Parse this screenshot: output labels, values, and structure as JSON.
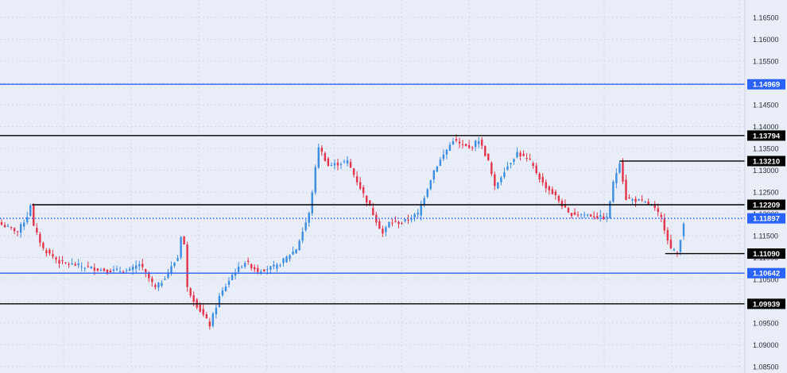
{
  "chart_data": {
    "type": "candlestick",
    "symbol_hint": "EURUSD",
    "y_axis": {
      "ticks": [
        "1.16500",
        "1.16000",
        "1.15500",
        "1.15000",
        "1.14500",
        "1.14000",
        "1.13500",
        "1.13000",
        "1.12500",
        "1.12000",
        "1.11500",
        "1.11000",
        "1.10500",
        "1.10000",
        "1.09500",
        "1.09000",
        "1.08500"
      ],
      "ylim": [
        1.085,
        1.1675
      ],
      "position": "right"
    },
    "grid": true,
    "colors": {
      "background": "#e9edf7",
      "up": "#3b8de0",
      "down": "#e3344b",
      "grid": "#d3d8e6",
      "black_level": "#000000",
      "blue_level": "#2962ff"
    },
    "levels": [
      {
        "value": 1.14969,
        "label": "1.14969",
        "color": "#2962ff",
        "style": "solid",
        "from_frac": 0.0
      },
      {
        "value": 1.13794,
        "label": "1.13794",
        "color": "#000000",
        "style": "solid",
        "from_frac": 0.0
      },
      {
        "value": 1.1321,
        "label": "1.13210",
        "color": "#000000",
        "style": "solid",
        "from_frac": 0.832
      },
      {
        "value": 1.12209,
        "label": "1.12209",
        "color": "#000000",
        "style": "solid",
        "from_frac": 0.043
      },
      {
        "value": 1.11897,
        "label": "1.11897",
        "color": "#2962ff",
        "style": "dotted",
        "from_frac": 0.0
      },
      {
        "value": 1.1109,
        "label": "1.11090",
        "color": "#000000",
        "style": "solid",
        "from_frac": 0.893
      },
      {
        "value": 1.10642,
        "label": "1.10642",
        "color": "#2962ff",
        "style": "solid",
        "from_frac": 0.0
      },
      {
        "value": 1.09939,
        "label": "1.09939",
        "color": "#000000",
        "style": "solid",
        "from_frac": 0.0
      }
    ],
    "close_path": [
      [
        0,
        1.1175
      ],
      [
        5,
        1.116
      ],
      [
        8,
        1.1195
      ],
      [
        9,
        1.1222
      ],
      [
        10,
        1.117
      ],
      [
        13,
        1.112
      ],
      [
        18,
        1.109
      ],
      [
        25,
        1.108
      ],
      [
        33,
        1.107
      ],
      [
        40,
        1.107
      ],
      [
        43,
        1.1085
      ],
      [
        48,
        1.103
      ],
      [
        50,
        1.1045
      ],
      [
        55,
        1.11
      ],
      [
        56,
        1.115
      ],
      [
        57,
        1.113
      ],
      [
        58,
        1.103
      ],
      [
        61,
        1.099
      ],
      [
        65,
        1.0945
      ],
      [
        68,
        1.101
      ],
      [
        72,
        1.106
      ],
      [
        76,
        1.109
      ],
      [
        80,
        1.107
      ],
      [
        86,
        1.108
      ],
      [
        92,
        1.112
      ],
      [
        96,
        1.12
      ],
      [
        99,
        1.1355
      ],
      [
        102,
        1.131
      ],
      [
        108,
        1.132
      ],
      [
        112,
        1.126
      ],
      [
        116,
        1.12
      ],
      [
        119,
        1.1155
      ],
      [
        121,
        1.118
      ],
      [
        125,
        1.118
      ],
      [
        130,
        1.12
      ],
      [
        135,
        1.13
      ],
      [
        138,
        1.1335
      ],
      [
        141,
        1.137
      ],
      [
        143,
        1.136
      ],
      [
        146,
        1.135
      ],
      [
        149,
        1.137
      ],
      [
        152,
        1.132
      ],
      [
        154,
        1.126
      ],
      [
        157,
        1.13
      ],
      [
        161,
        1.134
      ],
      [
        165,
        1.132
      ],
      [
        169,
        1.127
      ],
      [
        173,
        1.124
      ],
      [
        177,
        1.12
      ],
      [
        181,
        1.12
      ],
      [
        185,
        1.1195
      ],
      [
        189,
        1.119
      ],
      [
        191,
        1.127
      ],
      [
        193,
        1.132
      ],
      [
        195,
        1.1235
      ],
      [
        199,
        1.123
      ],
      [
        203,
        1.122
      ],
      [
        206,
        1.119
      ],
      [
        209,
        1.112
      ],
      [
        211,
        1.111
      ],
      [
        213,
        1.118
      ]
    ],
    "title": "",
    "xlabel": "",
    "ylabel": ""
  }
}
